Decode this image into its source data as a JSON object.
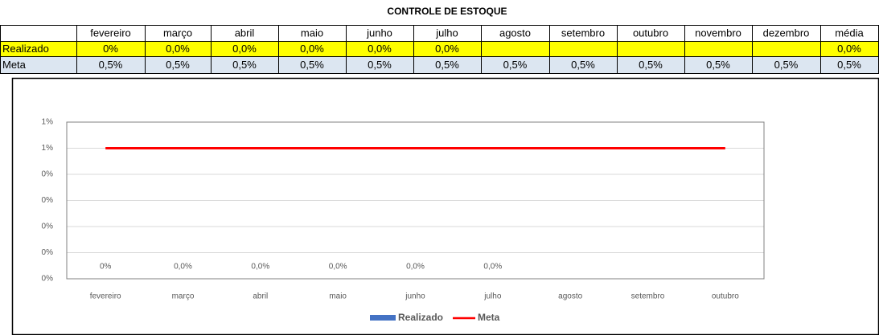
{
  "title": "CONTROLE DE ESTOQUE",
  "table": {
    "columns": [
      "fevereiro",
      "março",
      "abril",
      "maio",
      "junho",
      "julho",
      "agosto",
      "setembro",
      "outubro",
      "novembro",
      "dezembro",
      "média"
    ],
    "rows": [
      {
        "label": "Realizado",
        "cells": [
          "0%",
          "0,0%",
          "0,0%",
          "0,0%",
          "0,0%",
          "0,0%",
          null,
          null,
          null,
          null,
          null,
          "0,0%"
        ]
      },
      {
        "label": "Meta",
        "cells": [
          "0,5%",
          "0,5%",
          "0,5%",
          "0,5%",
          "0,5%",
          "0,5%",
          "0,5%",
          "0,5%",
          "0,5%",
          "0,5%",
          "0,5%",
          "0,5%"
        ]
      }
    ]
  },
  "chart_data": {
    "type": "bar",
    "categories": [
      "fevereiro",
      "março",
      "abril",
      "maio",
      "junho",
      "julho",
      "agosto",
      "setembro",
      "outubro"
    ],
    "series": [
      {
        "name": "Realizado",
        "type": "bar",
        "color": "#4472c4",
        "values": [
          0,
          0,
          0,
          0,
          0,
          0,
          null,
          null,
          null
        ],
        "value_labels": [
          "0%",
          "0,0%",
          "0,0%",
          "0,0%",
          "0,0%",
          "0,0%",
          null,
          null,
          null
        ]
      },
      {
        "name": "Meta",
        "type": "line",
        "color": "#ff0000",
        "values": [
          0.5,
          0.5,
          0.5,
          0.5,
          0.5,
          0.5,
          0.5,
          0.5,
          0.5
        ]
      }
    ],
    "ylim": [
      0,
      0.6
    ],
    "yticks": [
      {
        "value": 0,
        "label": "0%"
      },
      {
        "value": 0.1,
        "label": "0%"
      },
      {
        "value": 0.2,
        "label": "0%"
      },
      {
        "value": 0.3,
        "label": "0%"
      },
      {
        "value": 0.4,
        "label": "0%"
      },
      {
        "value": 0.5,
        "label": "1%"
      },
      {
        "value": 0.6,
        "label": "1%"
      }
    ],
    "grid": true,
    "legend": "bottom"
  }
}
